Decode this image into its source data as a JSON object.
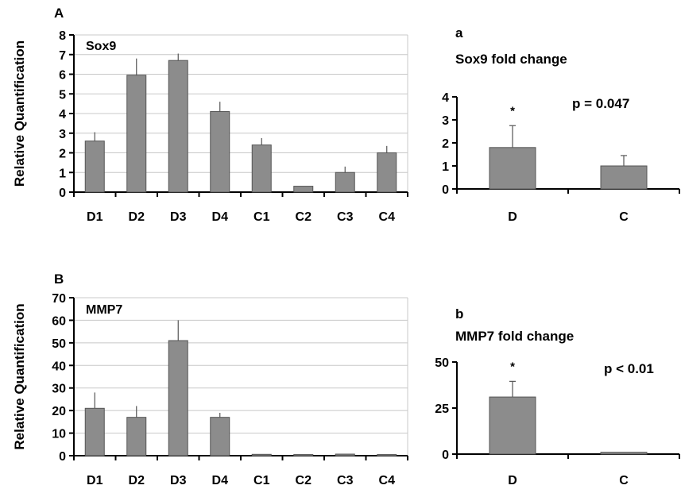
{
  "colors": {
    "bar_fill": "#8c8c8c",
    "bar_stroke": "#555555",
    "grid": "#c8c8c8",
    "axis": "#000000"
  },
  "chart_data": [
    {
      "id": "A",
      "type": "bar",
      "panel_label": "A",
      "gene_label": "Sox9",
      "title": "",
      "xlabel": "",
      "ylabel": "Relative Quantification",
      "categories": [
        "D1",
        "D2",
        "D3",
        "D4",
        "C1",
        "C2",
        "C3",
        "C4"
      ],
      "values": [
        2.6,
        5.95,
        6.7,
        4.1,
        2.4,
        0.3,
        1.0,
        2.0
      ],
      "errors": [
        0.45,
        0.85,
        0.35,
        0.5,
        0.35,
        0.0,
        0.3,
        0.35
      ],
      "ylim": [
        0,
        8
      ],
      "yticks": [
        0,
        1,
        2,
        3,
        4,
        5,
        6,
        7,
        8
      ],
      "grid": true
    },
    {
      "id": "a",
      "type": "bar",
      "panel_label": "a",
      "title": "Sox9 fold change",
      "annotation": "p = 0.047",
      "significance": [
        "*",
        ""
      ],
      "xlabel": "",
      "ylabel": "",
      "categories": [
        "D",
        "C"
      ],
      "values": [
        1.8,
        1.0
      ],
      "errors": [
        0.95,
        0.45
      ],
      "ylim": [
        0,
        4
      ],
      "yticks": [
        0,
        1,
        2,
        3,
        4
      ],
      "grid": false
    },
    {
      "id": "B",
      "type": "bar",
      "panel_label": "B",
      "gene_label": "MMP7",
      "title": "",
      "xlabel": "",
      "ylabel": "Relative Quantification",
      "categories": [
        "D1",
        "D2",
        "D3",
        "D4",
        "C1",
        "C2",
        "C3",
        "C4"
      ],
      "values": [
        21,
        17,
        51,
        17,
        0.6,
        0.5,
        0.7,
        0.5
      ],
      "errors": [
        7,
        5,
        9,
        2,
        0,
        0,
        0,
        0
      ],
      "ylim": [
        0,
        70
      ],
      "yticks": [
        0,
        10,
        20,
        30,
        40,
        50,
        60,
        70
      ],
      "grid": true
    },
    {
      "id": "b",
      "type": "bar",
      "panel_label": "b",
      "title": "MMP7 fold change",
      "annotation": "p < 0.01",
      "significance": [
        "*",
        ""
      ],
      "xlabel": "",
      "ylabel": "",
      "categories": [
        "D",
        "C"
      ],
      "values": [
        31,
        1
      ],
      "errors": [
        8.5,
        0
      ],
      "ylim": [
        0,
        50
      ],
      "yticks": [
        0,
        25,
        50
      ],
      "grid": false
    }
  ]
}
